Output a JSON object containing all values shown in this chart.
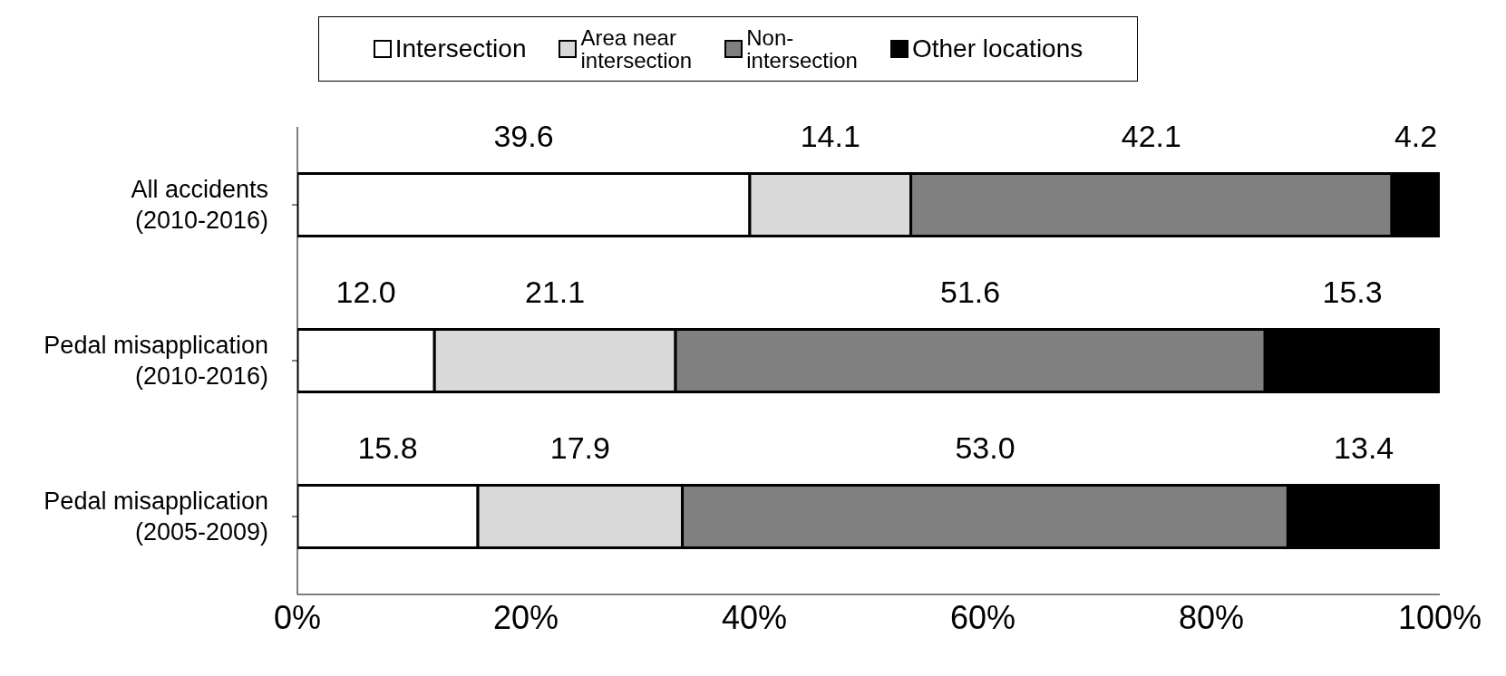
{
  "chart_data": {
    "type": "bar",
    "orientation": "horizontal",
    "stacked": true,
    "categories": [
      "All accidents\n(2010-2016)",
      "Pedal misapplication\n(2010-2016)",
      "Pedal misapplication\n(2005-2009)"
    ],
    "series": [
      {
        "name": "Intersection",
        "color": "#ffffff",
        "values": [
          39.6,
          12.0,
          15.8
        ]
      },
      {
        "name": "Area near\nintersection",
        "color": "#d9d9d9",
        "values": [
          14.1,
          21.1,
          17.9
        ]
      },
      {
        "name": "Non-\nintersection",
        "color": "#808080",
        "values": [
          42.1,
          51.6,
          53.0
        ]
      },
      {
        "name": "Other locations",
        "color": "#000000",
        "values": [
          4.2,
          15.3,
          13.4
        ]
      }
    ],
    "xlim": [
      0,
      100
    ],
    "xticks": [
      {
        "value": 0,
        "label": "0%"
      },
      {
        "value": 20,
        "label": "20%"
      },
      {
        "value": 40,
        "label": "40%"
      },
      {
        "value": 60,
        "label": "60%"
      },
      {
        "value": 80,
        "label": "80%"
      },
      {
        "value": 100,
        "label": "100%"
      }
    ],
    "value_labels": [
      [
        "39.6",
        "12.0",
        "15.8"
      ],
      [
        "14.1",
        "21.1",
        "17.9"
      ],
      [
        "42.1",
        "51.6",
        "53.0"
      ],
      [
        "4.2",
        "15.3",
        "13.4"
      ]
    ],
    "legend": "top",
    "grid": false
  }
}
